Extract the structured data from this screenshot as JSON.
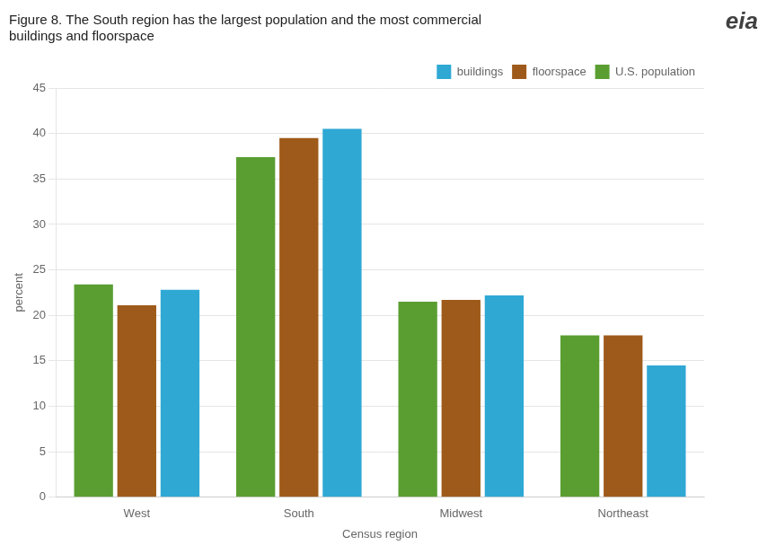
{
  "chart_data": {
    "type": "bar",
    "title": "Figure 8. The South region has the largest population and the most commercial\nbuildings and floorspace",
    "xlabel": "Census region",
    "ylabel": "percent",
    "categories": [
      "West",
      "South",
      "Midwest",
      "Northeast"
    ],
    "series": [
      {
        "name": "U.S. population",
        "color": "#5a9e32",
        "values": [
          23.4,
          37.4,
          21.5,
          17.8
        ]
      },
      {
        "name": "floorspace",
        "color": "#9e5a1a",
        "values": [
          21.1,
          39.5,
          21.7,
          17.8
        ]
      },
      {
        "name": "buildings",
        "color": "#2fa8d4",
        "values": [
          22.8,
          40.5,
          22.2,
          14.5
        ]
      }
    ],
    "ylim": [
      0,
      45
    ],
    "yticks": [
      0,
      5,
      10,
      15,
      20,
      25,
      30,
      35,
      40,
      45
    ],
    "grid": true,
    "legend": "upper right",
    "annotations": [
      "eia"
    ]
  }
}
